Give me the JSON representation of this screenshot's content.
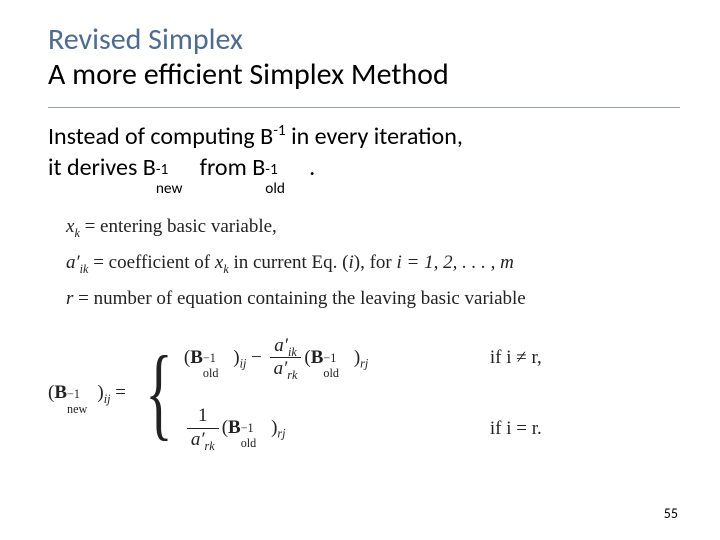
{
  "colors": {
    "accent": "#4f6b8f",
    "text": "#000000",
    "math": "#222222",
    "divider": "#9aa0a6",
    "background": "#ffffff"
  },
  "typography": {
    "title_fontsize_pt": 22,
    "body_fontsize_pt": 18,
    "math_fontsize_pt": 14,
    "title_family": "Calibri",
    "math_family": "Times New Roman"
  },
  "title": {
    "line1": "Revised Simplex",
    "line2": "A more efficient Simplex Method"
  },
  "body": {
    "line1_pre": "Instead of computing B",
    "line1_sup": "-1",
    "line1_post": " in every iteration,",
    "line2_pre": " it derives B",
    "line2_sup1": "-1",
    "line2_sub1": "new",
    "line2_mid": " from B",
    "line2_sup2": "-1",
    "line2_sub2": "old",
    "line2_post": " ."
  },
  "defs": {
    "row1_lhs": "x",
    "row1_lhs_sub": "k",
    "row1_rhs": " = entering basic variable,",
    "row2_lhs": "a′",
    "row2_lhs_sub": "ik",
    "row2_rhs_pre": " = coefficient of ",
    "row2_rhs_x": "x",
    "row2_rhs_xsub": "k",
    "row2_rhs_mid": " in current Eq. (",
    "row2_rhs_i": "i",
    "row2_rhs_post": "), for ",
    "row2_rhs_range": "i = 1, 2, . . . , m",
    "row3_lhs": "r",
    "row3_rhs": " = number of equation containing the leaving basic variable"
  },
  "formula": {
    "lhs_B": "B",
    "lhs_sup": "−1",
    "lhs_sub": "new",
    "lhs_ij": "ij",
    "eq": " = ",
    "old_sub": "old",
    "case1_cond": "if i ≠ r,",
    "case2_cond": "if i = r.",
    "a_ik": "a′",
    "a_ik_sub": "ik",
    "a_rk": "a′",
    "a_rk_sub": "rk",
    "one": "1",
    "rj": "rj",
    "minus": " − "
  },
  "page_number": "55"
}
